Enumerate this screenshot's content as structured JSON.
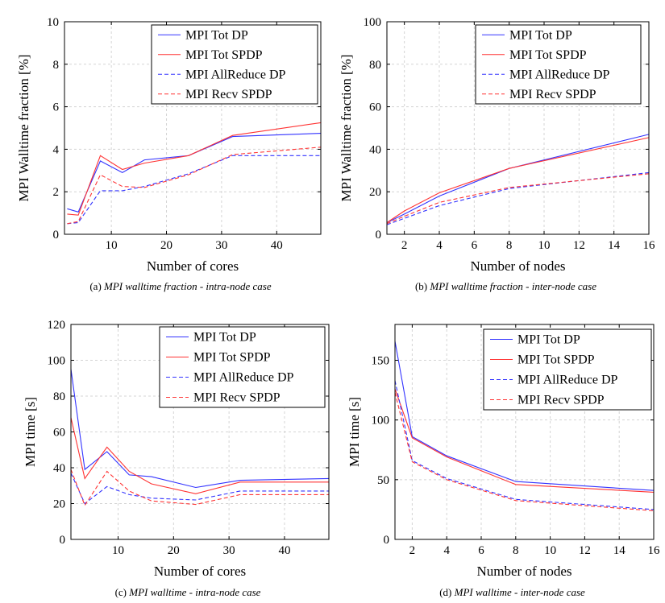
{
  "colors": {
    "dp": "#3333ff",
    "spdp": "#ff3333"
  },
  "chart_data": [
    {
      "type": "line",
      "x": [
        2,
        4,
        8,
        12,
        16,
        24,
        32,
        48
      ],
      "xlim": [
        1.5,
        48
      ],
      "ylim": [
        0,
        10
      ],
      "xticks": [
        "10",
        "20",
        "30",
        "40"
      ],
      "xtick_values": [
        10,
        20,
        30,
        40
      ],
      "yticks": [
        "0",
        "2",
        "4",
        "6",
        "8",
        "10"
      ],
      "ytick_values": [
        0,
        2,
        4,
        6,
        8,
        10
      ],
      "xlabel": "Number of cores",
      "ylabel": "MPI Walltime fraction [%]",
      "caption_prefix": "(a) ",
      "caption_text": "MPI walltime fraction - intra-node case",
      "grid": true,
      "legend": "top-right",
      "series": [
        {
          "name": "MPI Tot DP",
          "color": "dp",
          "dash": false,
          "values": [
            1.2,
            1.05,
            3.45,
            2.9,
            3.5,
            3.7,
            4.6,
            4.75
          ]
        },
        {
          "name": "MPI Tot SPDP",
          "color": "spdp",
          "dash": false,
          "values": [
            0.95,
            0.9,
            3.7,
            3.05,
            3.35,
            3.7,
            4.65,
            5.25
          ]
        },
        {
          "name": "MPI AllReduce DP",
          "color": "dp",
          "dash": true,
          "values": [
            0.5,
            0.55,
            2.05,
            2.05,
            2.25,
            2.85,
            3.7,
            3.7
          ]
        },
        {
          "name": "MPI Recv SPDP",
          "color": "spdp",
          "dash": true,
          "values": [
            0.5,
            0.6,
            2.8,
            2.25,
            2.2,
            2.8,
            3.75,
            4.1
          ]
        }
      ]
    },
    {
      "type": "line",
      "x": [
        1,
        2,
        4,
        8,
        16
      ],
      "xlim": [
        1,
        16
      ],
      "ylim": [
        0,
        100
      ],
      "xticks": [
        "2",
        "4",
        "6",
        "8",
        "10",
        "12",
        "14",
        "16"
      ],
      "xtick_values": [
        2,
        4,
        6,
        8,
        10,
        12,
        14,
        16
      ],
      "yticks": [
        "0",
        "20",
        "40",
        "60",
        "80",
        "100"
      ],
      "ytick_values": [
        0,
        20,
        40,
        60,
        80,
        100
      ],
      "xlabel": "Number of nodes",
      "ylabel": "MPI Walltime fraction [%]",
      "caption_prefix": "(b) ",
      "caption_text": "MPI walltime fraction - inter-node case",
      "grid": true,
      "legend": "top-right",
      "series": [
        {
          "name": "MPI Tot DP",
          "color": "dp",
          "dash": false,
          "values": [
            5.5,
            9.5,
            18,
            31,
            47
          ]
        },
        {
          "name": "MPI Tot SPDP",
          "color": "spdp",
          "dash": false,
          "values": [
            5.5,
            11,
            19.5,
            31,
            45.5
          ]
        },
        {
          "name": "MPI AllReduce DP",
          "color": "dp",
          "dash": true,
          "values": [
            4.5,
            7.5,
            13.5,
            21.5,
            29
          ]
        },
        {
          "name": "MPI Recv SPDP",
          "color": "spdp",
          "dash": true,
          "values": [
            5,
            8.5,
            15,
            22,
            28.5
          ]
        }
      ]
    },
    {
      "type": "line",
      "x": [
        1.5,
        4,
        8,
        12,
        16,
        24,
        32,
        48
      ],
      "xlim": [
        1.5,
        48
      ],
      "ylim": [
        0,
        120
      ],
      "xticks": [
        "10",
        "20",
        "30",
        "40"
      ],
      "xtick_values": [
        10,
        20,
        30,
        40
      ],
      "yticks": [
        "0",
        "20",
        "40",
        "60",
        "80",
        "100",
        "120"
      ],
      "ytick_values": [
        0,
        20,
        40,
        60,
        80,
        100,
        120
      ],
      "xlabel": "Number of cores",
      "ylabel": "MPI time [s]",
      "caption_prefix": "(c) ",
      "caption_text": "MPI walltime - intra-node case",
      "grid": true,
      "legend": "top-right",
      "series": [
        {
          "name": "MPI Tot DP",
          "color": "dp",
          "dash": false,
          "values": [
            95,
            39,
            49,
            36,
            35,
            29,
            33,
            34
          ]
        },
        {
          "name": "MPI Tot SPDP",
          "color": "spdp",
          "dash": false,
          "values": [
            68,
            34,
            51.5,
            38,
            31,
            25.5,
            32,
            32
          ]
        },
        {
          "name": "MPI AllReduce DP",
          "color": "dp",
          "dash": true,
          "values": [
            37,
            20,
            29.5,
            25,
            23,
            22,
            27,
            27
          ]
        },
        {
          "name": "MPI Recv SPDP",
          "color": "spdp",
          "dash": true,
          "values": [
            39,
            19,
            38,
            27,
            21.5,
            19.5,
            25,
            25
          ]
        }
      ]
    },
    {
      "type": "line",
      "x": [
        1,
        2,
        4,
        8,
        16
      ],
      "xlim": [
        1,
        16
      ],
      "ylim": [
        0,
        180
      ],
      "xticks": [
        "2",
        "4",
        "6",
        "8",
        "10",
        "12",
        "14",
        "16"
      ],
      "xtick_values": [
        2,
        4,
        6,
        8,
        10,
        12,
        14,
        16
      ],
      "yticks": [
        "0",
        "50",
        "100",
        "150"
      ],
      "ytick_values": [
        0,
        50,
        100,
        150
      ],
      "xlabel": "Number of nodes",
      "ylabel": "MPI time [s]",
      "caption_prefix": "(d) ",
      "caption_text": "MPI walltime - inter-node case",
      "grid": true,
      "legend": "top-right",
      "series": [
        {
          "name": "MPI Tot DP",
          "color": "dp",
          "dash": false,
          "values": [
            166,
            86,
            70,
            48.5,
            41
          ]
        },
        {
          "name": "MPI Tot SPDP",
          "color": "spdp",
          "dash": false,
          "values": [
            126,
            85,
            69,
            46,
            39.5
          ]
        },
        {
          "name": "MPI AllReduce DP",
          "color": "dp",
          "dash": true,
          "values": [
            133,
            66,
            51,
            33.5,
            25
          ]
        },
        {
          "name": "MPI Recv SPDP",
          "color": "spdp",
          "dash": true,
          "values": [
            123,
            65,
            50,
            32.5,
            24
          ]
        }
      ]
    }
  ]
}
